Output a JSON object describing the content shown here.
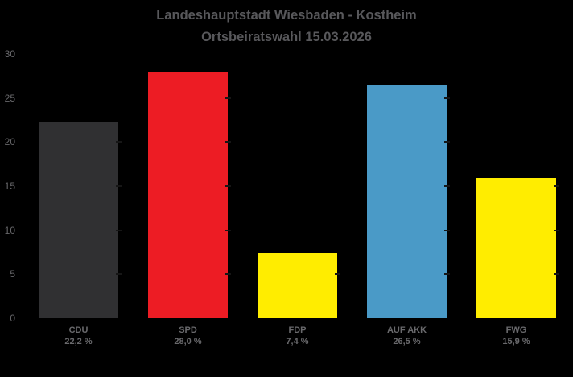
{
  "chart_data": {
    "type": "bar",
    "title": "Landeshauptstadt Wiesbaden - Kostheim",
    "subtitle": "Ortsbeiratswahl 15.03.2026",
    "categories": [
      "CDU",
      "SPD",
      "FDP",
      "AUF AKK",
      "FWG"
    ],
    "values": [
      22.2,
      28.0,
      7.4,
      26.5,
      15.9
    ],
    "value_labels": [
      "22,2 %",
      "28,0 %",
      "7,4 %",
      "26,5 %",
      "15,9 %"
    ],
    "bar_colors": [
      "#303032",
      "#ED1C24",
      "#FFED00",
      "#4A9AC7",
      "#FFED00"
    ],
    "xlabel": "",
    "ylabel": "",
    "ylim": [
      0,
      30
    ],
    "yticks": [
      0,
      5,
      10,
      15,
      20,
      25,
      30
    ],
    "grid": false,
    "legend": "none",
    "colors": {
      "background": "#000000",
      "title_text": "#58585B",
      "axis_text": "#67676A",
      "label_text": "#69696C",
      "bar_edge_tick": "#161616"
    }
  }
}
